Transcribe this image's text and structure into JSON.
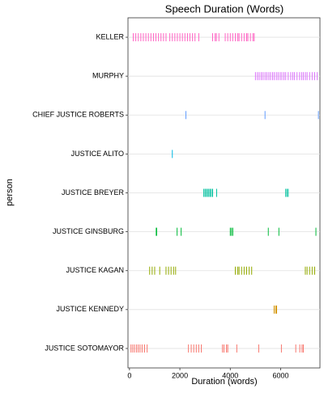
{
  "chart_data": {
    "type": "strip",
    "title": "Speech Duration (Words)",
    "x_label": "Duration (words)",
    "y_label": "person",
    "xlim": [
      -60,
      7560
    ],
    "xticks": [
      0,
      2000,
      4000,
      6000
    ],
    "grid": true,
    "series": [
      {
        "name": "KELLER",
        "color": "#FF61C3",
        "values": [
          150,
          250,
          350,
          450,
          550,
          650,
          750,
          850,
          950,
          1050,
          1150,
          1250,
          1350,
          1450,
          1600,
          1700,
          1800,
          1900,
          2000,
          2100,
          2200,
          2300,
          2400,
          2500,
          2600,
          2750,
          3300,
          3400,
          3450,
          3550,
          3800,
          3900,
          4000,
          4100,
          4200,
          4300,
          4350,
          4450,
          4550,
          4650,
          4700,
          4800,
          4900,
          4950
        ]
      },
      {
        "name": "MURPHY",
        "color": "#DB72FB",
        "values": [
          5000,
          5080,
          5150,
          5230,
          5300,
          5380,
          5450,
          5530,
          5600,
          5680,
          5750,
          5830,
          5900,
          5980,
          6050,
          6130,
          6200,
          6300,
          6400,
          6480,
          6550,
          6650,
          6750,
          6830,
          6900,
          6980,
          7050,
          7150,
          7250,
          7350,
          7450
        ]
      },
      {
        "name": "CHIEF JUSTICE ROBERTS",
        "color": "#619CFF",
        "values": [
          2240,
          5380,
          7500
        ]
      },
      {
        "name": "JUSTICE ALITO",
        "color": "#00B9E3",
        "values": [
          1700
        ]
      },
      {
        "name": "JUSTICE BREYER",
        "color": "#00C19F",
        "values": [
          2950,
          3000,
          3050,
          3100,
          3150,
          3200,
          3250,
          3300,
          3460,
          6200,
          6250,
          6300
        ]
      },
      {
        "name": "JUSTICE GINSBURG",
        "color": "#00BA38",
        "values": [
          1060,
          1080,
          1890,
          2050,
          4000,
          4050,
          4100,
          5510,
          5930,
          7400
        ]
      },
      {
        "name": "JUSTICE KAGAN",
        "color": "#93AA00",
        "values": [
          800,
          900,
          1000,
          1200,
          1450,
          1550,
          1650,
          1750,
          1830,
          4200,
          4300,
          4350,
          4450,
          4550,
          4650,
          4750,
          4850,
          6980,
          7050,
          7150,
          7250,
          7350
        ]
      },
      {
        "name": "JUSTICE KENNEDY",
        "color": "#D39200",
        "values": [
          5740,
          5800,
          5840
        ]
      },
      {
        "name": "JUSTICE SOTOMAYOR",
        "color": "#F8766D",
        "values": [
          60,
          130,
          200,
          280,
          350,
          420,
          500,
          600,
          700,
          2340,
          2450,
          2550,
          2650,
          2750,
          2850,
          3690,
          3750,
          3850,
          3900,
          4260,
          5130,
          6030,
          6600,
          6760,
          6850,
          6900
        ]
      }
    ]
  }
}
